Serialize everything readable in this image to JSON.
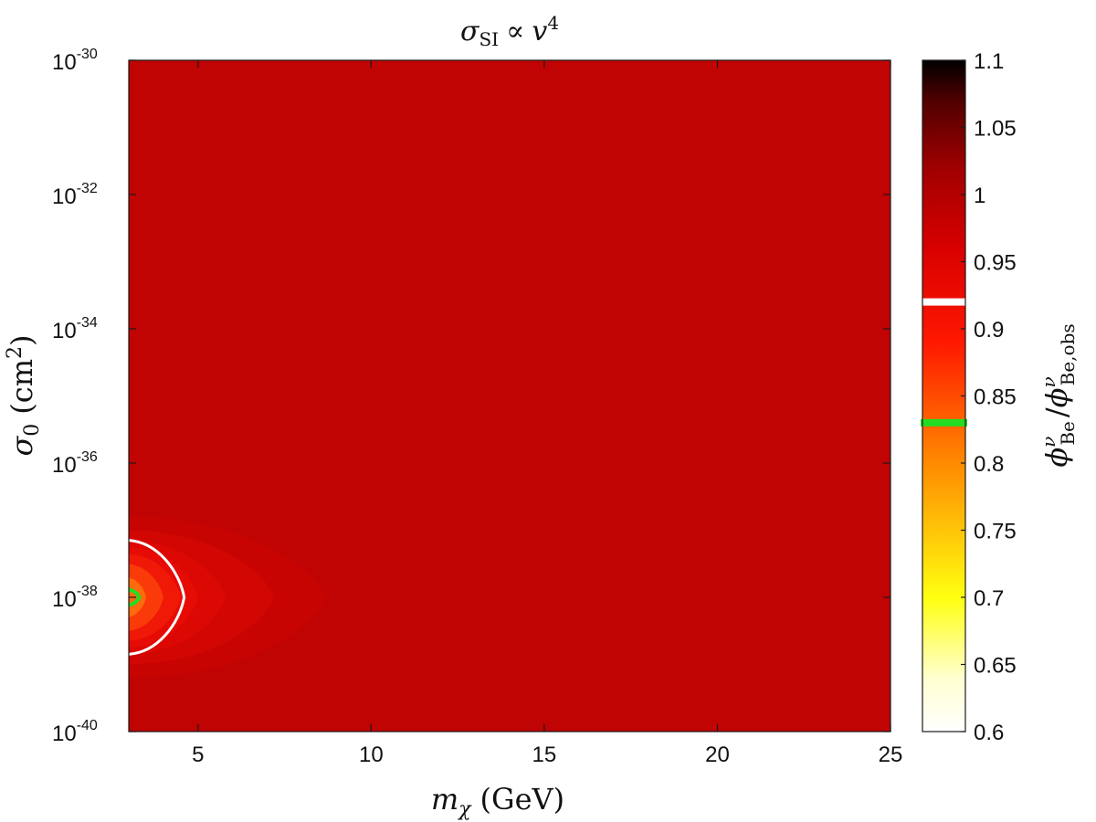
{
  "chart_data": {
    "type": "heatmap",
    "title": {
      "sym": "σ",
      "sub": "SI",
      "rel": "∝",
      "var": "v",
      "pow": "4"
    },
    "xlabel": {
      "sym": "m",
      "sub": "χ",
      "unit": "(GeV)"
    },
    "ylabel": {
      "sym": "σ",
      "sub": "0",
      "unit_open": "(cm",
      "unit_pow": "2",
      "unit_close": ")"
    },
    "colorbar_label": {
      "num": "ϕ",
      "num_sup": "ν",
      "num_sub": "Be",
      "slash": "/",
      "den": "ϕ",
      "den_sup": "ν",
      "den_sub": "Be,obs"
    },
    "x_axis": {
      "range": [
        3,
        25
      ],
      "ticks": [
        "5",
        "10",
        "15",
        "20",
        "25"
      ],
      "tick_values": [
        5,
        10,
        15,
        20,
        25
      ]
    },
    "y_axis": {
      "scale": "log",
      "range_exponent": [
        -40,
        -30
      ],
      "tick_base": "10",
      "tick_exponents": [
        "-30",
        "-32",
        "-34",
        "-36",
        "-38",
        "-40"
      ],
      "tick_values": [
        -30,
        -32,
        -34,
        -36,
        -38,
        -40
      ]
    },
    "colorbar": {
      "range": [
        0.6,
        1.1
      ],
      "colormap": "hot",
      "ticks": [
        "1.1",
        "1.05",
        "1",
        "0.95",
        "0.9",
        "0.85",
        "0.8",
        "0.75",
        "0.7",
        "0.65",
        "0.6"
      ],
      "tick_values": [
        1.1,
        1.05,
        1.0,
        0.95,
        0.9,
        0.85,
        0.8,
        0.75,
        0.7,
        0.65,
        0.6
      ],
      "markers": [
        {
          "value": 0.92,
          "color": "#ffffff"
        },
        {
          "value": 0.83,
          "color": "#22dd22"
        }
      ]
    },
    "background_value": 0.96,
    "feature": {
      "peak_mass_gev": 3,
      "peak_log_sigma": -38,
      "peak_value": 0.83,
      "levels": [
        {
          "value": 0.955,
          "mass_extent_gev": 8.7,
          "log_sigma_halfwidth": 1.2,
          "color": "#c80402"
        },
        {
          "value": 0.945,
          "mass_extent_gev": 7.2,
          "log_sigma_halfwidth": 1.0,
          "color": "#d20603"
        },
        {
          "value": 0.935,
          "mass_extent_gev": 5.8,
          "log_sigma_halfwidth": 0.85,
          "color": "#dc0804"
        },
        {
          "value": 0.925,
          "mass_extent_gev": 5.0,
          "log_sigma_halfwidth": 0.75,
          "color": "#e60b04"
        },
        {
          "value": 0.915,
          "mass_extent_gev": 4.5,
          "log_sigma_halfwidth": 0.65,
          "color": "#f01806"
        },
        {
          "value": 0.895,
          "mass_extent_gev": 4.0,
          "log_sigma_halfwidth": 0.5,
          "color": "#fa3a08"
        },
        {
          "value": 0.87,
          "mass_extent_gev": 3.5,
          "log_sigma_halfwidth": 0.3,
          "color": "#ff6a0c"
        }
      ],
      "contours": [
        {
          "value": 0.92,
          "mass_extent_gev": 4.6,
          "log_sigma_halfwidth": 0.85,
          "color": "#ffffff"
        },
        {
          "value": 0.83,
          "mass_extent_gev": 3.3,
          "log_sigma_halfwidth": 0.12,
          "color": "#22dd22"
        }
      ]
    }
  }
}
